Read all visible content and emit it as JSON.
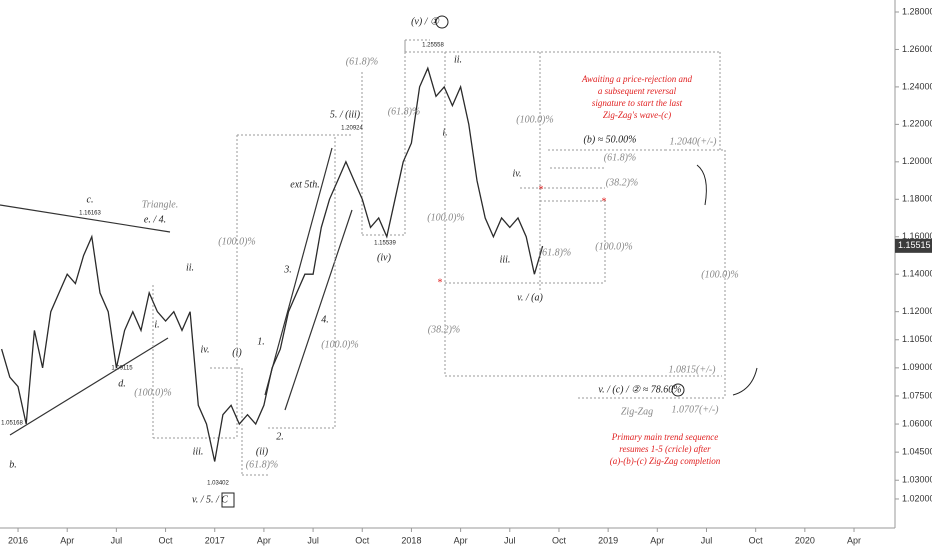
{
  "chart_data": {
    "type": "line",
    "color": "#2b2b2b",
    "x": [
      -1,
      -0.5,
      0,
      0.5,
      1,
      1.5,
      2,
      2.5,
      3,
      3.5,
      4,
      4.5,
      5,
      5.5,
      6,
      6.5,
      7,
      7.5,
      8,
      8.5,
      9,
      9.5,
      10,
      10.5,
      11,
      11.5,
      12,
      12.5,
      13,
      13.5,
      14,
      14.5,
      15,
      15.5,
      16,
      16.5,
      17,
      17.5,
      18,
      18.5,
      19,
      19.5,
      20,
      20.5,
      21,
      21.5,
      22,
      22.5,
      23,
      23.5,
      24,
      24.5,
      25,
      25.5,
      26,
      26.5,
      27,
      27.5,
      28,
      28.5,
      29,
      29.5,
      30,
      30.5,
      31,
      31.5,
      32
    ],
    "values": [
      1.1,
      1.085,
      1.08,
      1.06,
      1.11,
      1.09,
      1.12,
      1.13,
      1.14,
      1.135,
      1.15,
      1.16,
      1.13,
      1.12,
      1.09,
      1.11,
      1.12,
      1.11,
      1.13,
      1.12,
      1.115,
      1.12,
      1.11,
      1.12,
      1.07,
      1.06,
      1.04,
      1.065,
      1.07,
      1.06,
      1.065,
      1.06,
      1.07,
      1.09,
      1.1,
      1.12,
      1.13,
      1.14,
      1.14,
      1.165,
      1.18,
      1.19,
      1.2,
      1.19,
      1.18,
      1.165,
      1.17,
      1.16,
      1.18,
      1.2,
      1.21,
      1.24,
      1.25,
      1.235,
      1.24,
      1.23,
      1.24,
      1.22,
      1.19,
      1.17,
      1.16,
      1.17,
      1.165,
      1.17,
      1.16,
      1.14,
      1.155
    ],
    "xlim": [
      -1.1,
      53.5
    ],
    "xticks": [
      {
        "value": 0,
        "label": "2016"
      },
      {
        "value": 3,
        "label": "Apr"
      },
      {
        "value": 6,
        "label": "Jul"
      },
      {
        "value": 9,
        "label": "Oct"
      },
      {
        "value": 12,
        "label": "2017"
      },
      {
        "value": 15,
        "label": "Apr"
      },
      {
        "value": 18,
        "label": "Jul"
      },
      {
        "value": 21,
        "label": "Oct"
      },
      {
        "value": 24,
        "label": "2018"
      },
      {
        "value": 27,
        "label": "Apr"
      },
      {
        "value": 30,
        "label": "Jul"
      },
      {
        "value": 33,
        "label": "Oct"
      },
      {
        "value": 36,
        "label": "2019"
      },
      {
        "value": 39,
        "label": "Apr"
      },
      {
        "value": 42,
        "label": "Jul"
      },
      {
        "value": 45,
        "label": "Oct"
      },
      {
        "value": 48,
        "label": "2020"
      },
      {
        "value": 51,
        "label": "Apr"
      }
    ],
    "ylim": [
      1.0045,
      1.2864
    ],
    "yticks": [
      {
        "value": 1.28,
        "label": "1.28000"
      },
      {
        "value": 1.26,
        "label": "1.26000"
      },
      {
        "value": 1.24,
        "label": "1.24000"
      },
      {
        "value": 1.22,
        "label": "1.22000"
      },
      {
        "value": 1.2,
        "label": "1.20000"
      },
      {
        "value": 1.18,
        "label": "1.18000"
      },
      {
        "value": 1.16,
        "label": "1.16000"
      },
      {
        "value": 1.14,
        "label": "1.14000"
      },
      {
        "value": 1.12,
        "label": "1.12000"
      },
      {
        "value": 1.105,
        "label": "1.10500"
      },
      {
        "value": 1.09,
        "label": "1.09000"
      },
      {
        "value": 1.075,
        "label": "1.07500"
      },
      {
        "value": 1.06,
        "label": "1.06000"
      },
      {
        "value": 1.045,
        "label": "1.04500"
      },
      {
        "value": 1.03,
        "label": "1.03000"
      },
      {
        "value": 1.02,
        "label": "1.02000"
      }
    ],
    "last_price": {
      "value": 1.15515,
      "label": "1.15515"
    },
    "annotations": [
      "(v) / ①",
      "1.25558",
      "(61.8)%",
      "ii.",
      "5. / (iii)",
      "1.20924",
      "(61.8)%",
      "i.",
      "ext 5th.",
      "c.",
      "1.16163",
      "Triangle.",
      "e. / 4.",
      "(100.0)%",
      "1.15539",
      "(iv)",
      "3.",
      "ii.",
      "i.",
      "4.",
      "1.",
      "(100.0)%",
      "iv.",
      "(i)",
      "1.09115",
      "d.",
      "(100.0)%",
      "1.05168",
      "2.",
      "(ii)",
      "iii.",
      "(61.8)%",
      "b.",
      "1.03402",
      "v. / 5. / C",
      "(100.0)%",
      "(b) ≈ 50.00%",
      "(61.8)%",
      "iv.",
      "(38.2)%",
      "(100.0)%",
      "(100.0)%",
      "iii.",
      "(61.8)%",
      "v. / (a)",
      "(38.2)%",
      "1.2040(+/-)",
      "(100.0)%",
      "1.0815(+/-)",
      "v. / (c) / ② ≈ 78.60%",
      "Zig-Zag",
      "1.0707(+/-)"
    ],
    "note_top": [
      "Awaiting a price-rejection and",
      "a subsequent reversal",
      "signature to start the last",
      "Zig-Zag's wave-(c)"
    ],
    "note_bottom": [
      "Primary main trend sequence",
      "resumes 1-5 (cricle) after",
      "(a)-(b)-(c) Zig-Zag completion"
    ]
  }
}
